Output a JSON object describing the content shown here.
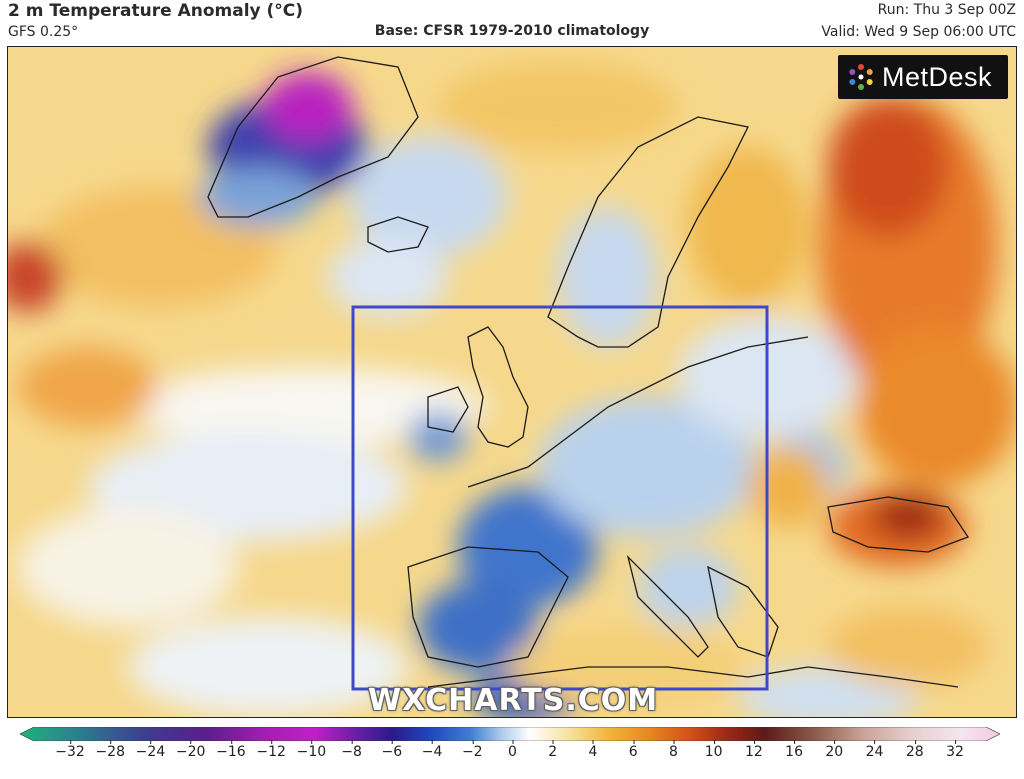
{
  "header": {
    "title": "2 m Temperature Anomaly (°C)",
    "model": "GFS 0.25°",
    "base": "Base: CFSR 1979-2010 climatology",
    "run": "Run: Thu 3 Sep 00Z",
    "valid": "Valid: Wed 9 Sep 06:00 UTC"
  },
  "logo": {
    "text": "MetDesk",
    "icon": "metdesk-star-icon"
  },
  "watermark": "WXCHARTS.COM",
  "highlight_box": {
    "color": "#3f48c8",
    "region": "Western and Central Europe"
  },
  "colorbar": {
    "ticks": [
      "−32",
      "−28",
      "−24",
      "−20",
      "−16",
      "−12",
      "−10",
      "−8",
      "−6",
      "−4",
      "−2",
      "0",
      "2",
      "4",
      "6",
      "8",
      "10",
      "12",
      "16",
      "20",
      "24",
      "28",
      "32"
    ],
    "colors": [
      "#1fb37b",
      "#2d7d8f",
      "#3d3c8f",
      "#5a1e8a",
      "#8b1d9c",
      "#c21ec9",
      "#6e1fa8",
      "#2a1a8c",
      "#2148c0",
      "#3f7fd4",
      "#a9c8e8",
      "#ffffff",
      "#f6e3a0",
      "#f2b53d",
      "#e88a1f",
      "#d8541a",
      "#9e2a16",
      "#5c1a1a",
      "#8a5a4a",
      "#c9a398",
      "#e6cfcf",
      "#f4e6ee",
      "#f7c7e0"
    ]
  }
}
